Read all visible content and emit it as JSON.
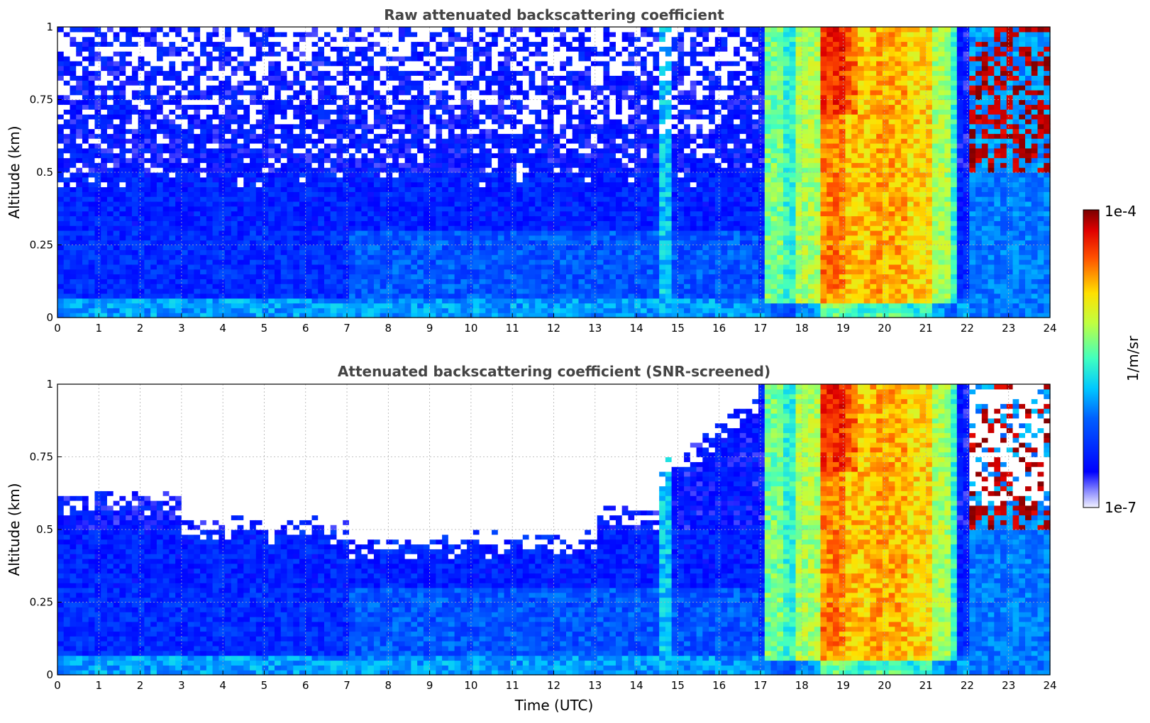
{
  "chart_data": [
    {
      "type": "heatmap",
      "title": "Raw attenuated backscattering coefficient",
      "xlabel": "",
      "ylabel": "Altitude (km)",
      "xlim": [
        0,
        24
      ],
      "ylim": [
        0,
        1
      ],
      "xticks": [
        0,
        1,
        2,
        3,
        4,
        5,
        6,
        7,
        8,
        9,
        10,
        11,
        12,
        13,
        14,
        15,
        16,
        17,
        18,
        19,
        20,
        21,
        22,
        23,
        24
      ],
      "yticks": [
        0,
        0.25,
        0.5,
        0.75,
        1
      ],
      "ytick_labels": [
        "0",
        "0.25",
        "0.5",
        "0.75",
        "1"
      ],
      "grid": true,
      "screened": false,
      "colorbar": {
        "min_label": "1e-7",
        "max_label": "1e-4",
        "label": "1/m/sr",
        "scale": "log"
      }
    },
    {
      "type": "heatmap",
      "title": "Attenuated backscattering coefficient (SNR-screened)",
      "xlabel": "Time (UTC)",
      "ylabel": "Altitude (km)",
      "xlim": [
        0,
        24
      ],
      "ylim": [
        0,
        1
      ],
      "xticks": [
        0,
        1,
        2,
        3,
        4,
        5,
        6,
        7,
        8,
        9,
        10,
        11,
        12,
        13,
        14,
        15,
        16,
        17,
        18,
        19,
        20,
        21,
        22,
        23,
        24
      ],
      "yticks": [
        0,
        0.25,
        0.5,
        0.75,
        1
      ],
      "ytick_labels": [
        "0",
        "0.25",
        "0.5",
        "0.75",
        "1"
      ],
      "grid": true,
      "screened": true,
      "colorbar": {
        "min_label": "1e-7",
        "max_label": "1e-4",
        "label": "1/m/sr",
        "scale": "log"
      }
    }
  ],
  "colorbar": {
    "min_label": "1e-7",
    "max_label": "1e-4",
    "label": "1/m/sr",
    "colormap": "jet"
  }
}
